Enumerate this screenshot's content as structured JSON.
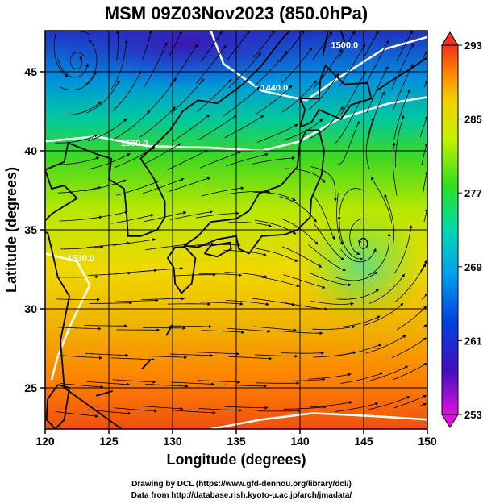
{
  "title": "MSM 09Z03Nov2023 (850.0hPa)",
  "xlabel": "Longitude (degrees)",
  "ylabel": "Latitude  (degrees)",
  "footer": {
    "line1": "Drawing by DCL (https://www.gfd-dennou.org/library/dcl/)",
    "line2": "Data from http://database.rish.kyoto-u.ac.jp/arch/jmadata/"
  },
  "map": {
    "lon_range": [
      120,
      150
    ],
    "lat_range": [
      22.4,
      47.6
    ],
    "lon_ticks": [
      "120",
      "125",
      "130",
      "135",
      "140",
      "145",
      "150"
    ],
    "lat_ticks": [
      "25",
      "30",
      "35",
      "40",
      "45"
    ],
    "lon_tick_values": [
      120,
      125,
      130,
      135,
      140,
      145,
      150
    ],
    "lat_tick_values": [
      25,
      30,
      35,
      40,
      45
    ],
    "cyclones": [
      {
        "lon": 145.0,
        "lat": 34.0
      },
      {
        "lon": 122.5,
        "lat": 45.5
      }
    ],
    "contour_labels": [
      {
        "text": "1500.0",
        "lon": 143.5,
        "lat": 46.5
      },
      {
        "text": "1440.0",
        "lon": 138.0,
        "lat": 43.8
      },
      {
        "text": "1530.0",
        "lon": 127.0,
        "lat": 40.3
      },
      {
        "text": "1530.0",
        "lon": 122.8,
        "lat": 33.0
      }
    ]
  },
  "colorbar": {
    "ticks": [
      "293",
      "285",
      "277",
      "269",
      "261",
      "253"
    ],
    "tick_values": [
      293,
      285,
      277,
      269,
      261,
      253
    ],
    "min": 253,
    "max": 293
  }
}
